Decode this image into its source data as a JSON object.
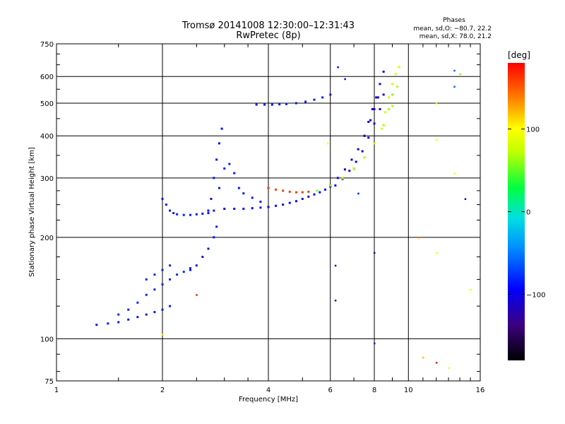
{
  "header": {
    "title": "Tromsø 20141008 12:30:00–12:31:43",
    "subtitle": "RwPretec (8p)"
  },
  "stats": {
    "title": "Phases",
    "line_o": "mean, sd,O: −80.7, 22.2",
    "line_x": "mean, sd,X:  78.0, 21.2"
  },
  "colorbar": {
    "unit": "[deg]",
    "ticks": [
      {
        "value": 100,
        "label": "100"
      },
      {
        "value": 0,
        "label": "0"
      },
      {
        "value": -100,
        "label": "−100"
      }
    ],
    "range": [
      -180,
      180
    ]
  },
  "chart_data": {
    "type": "scatter",
    "title": "Tromsø 20141008 12:30:00–12:31:43",
    "subtitle": "RwPretec (8p)",
    "xlabel": "Frequency [MHz]",
    "ylabel": "Stationary phase Virtual Height [km]",
    "x_scale": "log",
    "y_scale": "log",
    "xlim": [
      1,
      16
    ],
    "ylim": [
      75,
      750
    ],
    "grid": true,
    "x_ticks": [
      {
        "value": 1,
        "label": "1"
      },
      {
        "value": 2,
        "label": "2"
      },
      {
        "value": 4,
        "label": "4"
      },
      {
        "value": 6,
        "label": "6"
      },
      {
        "value": 8,
        "label": "8"
      },
      {
        "value": 10,
        "label": "10"
      },
      {
        "value": 16,
        "label": "16"
      }
    ],
    "y_ticks": [
      {
        "value": 75,
        "label": "75"
      },
      {
        "value": 100,
        "label": "100"
      },
      {
        "value": 200,
        "label": "200"
      },
      {
        "value": 300,
        "label": "300"
      },
      {
        "value": 400,
        "label": "400"
      },
      {
        "value": 500,
        "label": "500"
      },
      {
        "value": 600,
        "label": "600"
      },
      {
        "value": 750,
        "label": "750"
      }
    ],
    "traces": [
      {
        "x": [
          1.3,
          1.4,
          1.5,
          1.6,
          1.7,
          1.8,
          1.9,
          2.0,
          2.1
        ],
        "y": [
          110,
          111,
          112,
          114,
          116,
          118,
          120,
          122,
          125
        ],
        "phase": -85
      },
      {
        "x": [
          1.5,
          1.6,
          1.7,
          1.8,
          1.9,
          2.0,
          2.1,
          2.2,
          2.3,
          2.4
        ],
        "y": [
          118,
          122,
          128,
          135,
          140,
          145,
          150,
          155,
          158,
          162
        ],
        "phase": -80
      },
      {
        "x": [
          1.8,
          1.9,
          2.0,
          2.1
        ],
        "y": [
          150,
          155,
          160,
          165
        ],
        "phase": -80
      },
      {
        "x": [
          2.0,
          2.05,
          2.1,
          2.15,
          2.2,
          2.3,
          2.4,
          2.5,
          2.6,
          2.7
        ],
        "y": [
          260,
          250,
          240,
          236,
          234,
          233,
          233,
          234,
          235,
          236
        ],
        "phase": -85
      },
      {
        "x": [
          2.4,
          2.5,
          2.6,
          2.7,
          2.8,
          2.85
        ],
        "y": [
          160,
          165,
          175,
          185,
          200,
          215
        ],
        "phase": -85
      },
      {
        "x": [
          2.7,
          2.75,
          2.8,
          2.85,
          2.9,
          2.95
        ],
        "y": [
          240,
          260,
          300,
          340,
          380,
          420
        ],
        "phase": -88
      },
      {
        "x": [
          2.8,
          2.9,
          3.0,
          3.1,
          3.2,
          3.3,
          3.4,
          3.6,
          3.8
        ],
        "y": [
          240,
          280,
          320,
          330,
          310,
          280,
          270,
          262,
          255
        ],
        "phase": -85
      },
      {
        "x": [
          3.0,
          3.2,
          3.4,
          3.6,
          3.8,
          4.0,
          4.2,
          4.4,
          4.6,
          4.8,
          5.0,
          5.2,
          5.4,
          5.6,
          5.8,
          6.0
        ],
        "y": [
          243,
          243,
          243,
          244,
          245,
          246,
          248,
          250,
          253,
          256,
          260,
          264,
          268,
          272,
          277,
          283
        ],
        "phase": -90
      },
      {
        "x": [
          6.0,
          6.3,
          6.6,
          6.9,
          7.2,
          7.5,
          7.8,
          8.0,
          8.2
        ],
        "y": [
          285,
          300,
          318,
          340,
          365,
          400,
          445,
          480,
          520
        ],
        "phase": -110
      },
      {
        "x": [
          6.2,
          6.5,
          6.8,
          7.1,
          7.4,
          7.7,
          8.0,
          8.3,
          8.5
        ],
        "y": [
          285,
          298,
          315,
          335,
          360,
          395,
          435,
          480,
          530
        ],
        "phase": -105
      },
      {
        "x": [
          7.5,
          7.7,
          7.9,
          8.1,
          8.3,
          8.5
        ],
        "y": [
          400,
          440,
          480,
          520,
          570,
          620
        ],
        "phase": -115
      },
      {
        "x": [
          3.7,
          3.9,
          4.1,
          4.3,
          4.5,
          4.8,
          5.1,
          5.4,
          5.7,
          6.0
        ],
        "y": [
          495,
          495,
          495,
          496,
          497,
          500,
          505,
          512,
          520,
          530
        ],
        "phase": -85
      },
      {
        "x": [
          4.0,
          4.2,
          4.4,
          4.6,
          4.8,
          5.0,
          5.2
        ],
        "y": [
          280,
          277,
          275,
          273,
          272,
          272,
          273
        ],
        "phase": 160
      },
      {
        "x": [
          5.5,
          6.0,
          6.5,
          7.0,
          7.5,
          8.0,
          8.5,
          8.8,
          9.0
        ],
        "y": [
          275,
          285,
          300,
          320,
          345,
          380,
          430,
          480,
          530
        ],
        "phase": 60
      },
      {
        "x": [
          6.5,
          7.0,
          7.5,
          8.0,
          8.5,
          9.0,
          9.3
        ],
        "y": [
          300,
          318,
          345,
          380,
          430,
          490,
          560
        ],
        "phase": 70
      },
      {
        "x": [
          8.4,
          8.6,
          8.8,
          9.0,
          9.2,
          9.4
        ],
        "y": [
          420,
          470,
          520,
          570,
          610,
          640
        ],
        "phase": 80
      }
    ],
    "isolated_points": [
      {
        "x": 6.2,
        "y": 165,
        "phase": -110
      },
      {
        "x": 6.2,
        "y": 130,
        "phase": -110
      },
      {
        "x": 8.0,
        "y": 180,
        "phase": -120
      },
      {
        "x": 8.0,
        "y": 97,
        "phase": -80
      },
      {
        "x": 10.7,
        "y": 200,
        "phase": 140
      },
      {
        "x": 12.0,
        "y": 180,
        "phase": 100
      },
      {
        "x": 12.0,
        "y": 390,
        "phase": 100
      },
      {
        "x": 12.0,
        "y": 500,
        "phase": 110
      },
      {
        "x": 13.5,
        "y": 310,
        "phase": 100
      },
      {
        "x": 14.5,
        "y": 260,
        "phase": -110
      },
      {
        "x": 13.5,
        "y": 560,
        "phase": -60
      },
      {
        "x": 13.5,
        "y": 625,
        "phase": -60
      },
      {
        "x": 14.0,
        "y": 610,
        "phase": 60
      },
      {
        "x": 15.0,
        "y": 140,
        "phase": 100
      },
      {
        "x": 11.0,
        "y": 88,
        "phase": 120
      },
      {
        "x": 12.0,
        "y": 85,
        "phase": 170
      },
      {
        "x": 13.0,
        "y": 82,
        "phase": 100
      },
      {
        "x": 7.2,
        "y": 270,
        "phase": -80
      },
      {
        "x": 2.0,
        "y": 103,
        "phase": 110
      },
      {
        "x": 2.5,
        "y": 135,
        "phase": 170
      },
      {
        "x": 6.3,
        "y": 640,
        "phase": -100
      },
      {
        "x": 6.6,
        "y": 590,
        "phase": -100
      },
      {
        "x": 5.9,
        "y": 380,
        "phase": 100
      }
    ]
  }
}
